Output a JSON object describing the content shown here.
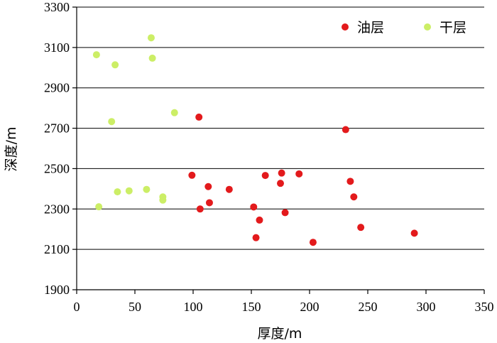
{
  "chart_data": {
    "type": "scatter",
    "xlabel": "厚度/m",
    "ylabel": "深度/m",
    "xlim": [
      0,
      350
    ],
    "ylim": [
      1900,
      3300
    ],
    "xticks": [
      0,
      50,
      100,
      150,
      200,
      250,
      300,
      350
    ],
    "yticks": [
      1900,
      2100,
      2300,
      2500,
      2700,
      2900,
      3100,
      3300
    ],
    "grid": "horizontal",
    "legend_position": "top-right",
    "series": [
      {
        "name": "油层",
        "color": "#e31a1c",
        "points": [
          {
            "x": 105,
            "y": 2755
          },
          {
            "x": 231,
            "y": 2693
          },
          {
            "x": 99,
            "y": 2467
          },
          {
            "x": 113,
            "y": 2411
          },
          {
            "x": 131,
            "y": 2397
          },
          {
            "x": 162,
            "y": 2466
          },
          {
            "x": 176,
            "y": 2478
          },
          {
            "x": 175,
            "y": 2427
          },
          {
            "x": 191,
            "y": 2474
          },
          {
            "x": 235,
            "y": 2437
          },
          {
            "x": 238,
            "y": 2360
          },
          {
            "x": 106,
            "y": 2300
          },
          {
            "x": 114,
            "y": 2331
          },
          {
            "x": 152,
            "y": 2310
          },
          {
            "x": 157,
            "y": 2245
          },
          {
            "x": 179,
            "y": 2282
          },
          {
            "x": 244,
            "y": 2209
          },
          {
            "x": 154,
            "y": 2158
          },
          {
            "x": 203,
            "y": 2135
          },
          {
            "x": 290,
            "y": 2180
          }
        ]
      },
      {
        "name": "干层",
        "color": "#ccee66",
        "points": [
          {
            "x": 17,
            "y": 3064
          },
          {
            "x": 33,
            "y": 3014
          },
          {
            "x": 64,
            "y": 3148
          },
          {
            "x": 65,
            "y": 3047
          },
          {
            "x": 84,
            "y": 2777
          },
          {
            "x": 30,
            "y": 2733
          },
          {
            "x": 35,
            "y": 2385
          },
          {
            "x": 45,
            "y": 2390
          },
          {
            "x": 60,
            "y": 2397
          },
          {
            "x": 74,
            "y": 2360
          },
          {
            "x": 74,
            "y": 2344
          },
          {
            "x": 19,
            "y": 2311
          }
        ]
      }
    ]
  }
}
